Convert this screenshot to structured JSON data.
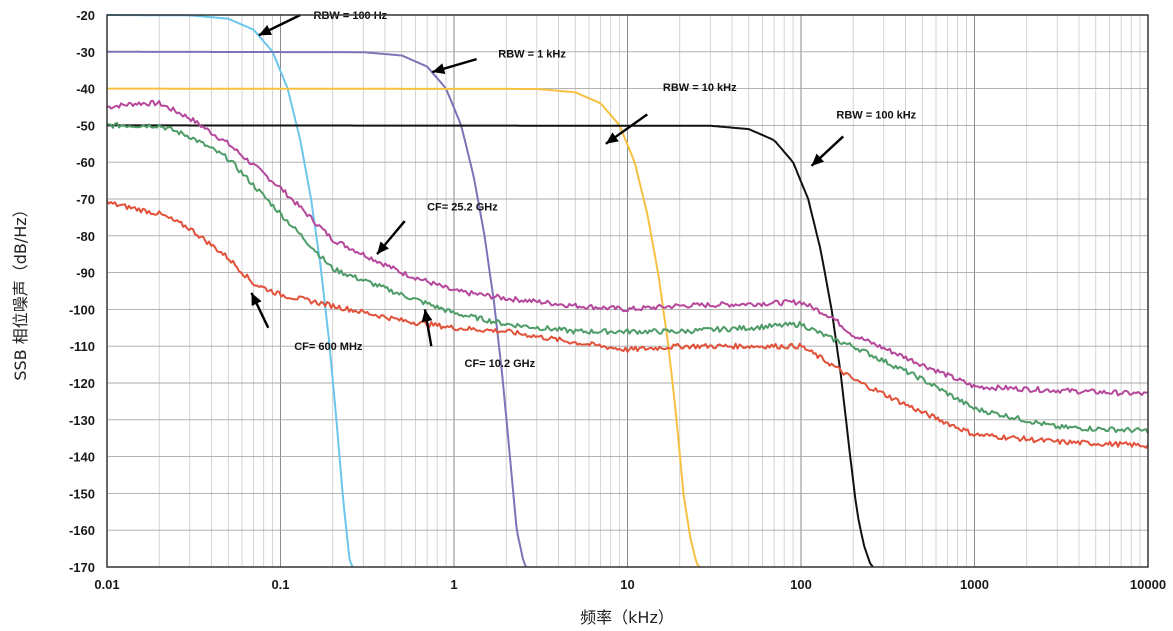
{
  "chart_data": {
    "type": "line",
    "title": "",
    "xlabel": "频率（kHz）",
    "ylabel": "SSB 相位噪声（dB/Hz）",
    "xscale": "log",
    "xlim": [
      0.01,
      10000
    ],
    "ylim": [
      -170,
      -20
    ],
    "grid": true,
    "x_tick_labels": [
      "0.01",
      "0.1",
      "1",
      "10",
      "100",
      "1000",
      "10000"
    ],
    "y_tick_labels": [
      "-20",
      "-30",
      "-40",
      "-50",
      "-60",
      "-70",
      "-80",
      "-90",
      "-100",
      "-110",
      "-120",
      "-130",
      "-140",
      "-150",
      "-160",
      "-170"
    ],
    "series": [
      {
        "name": "RBW = 100 Hz",
        "color": "#6cc6ec",
        "x": [
          0.01,
          0.03,
          0.05,
          0.07,
          0.09,
          0.11,
          0.13,
          0.15,
          0.17,
          0.19,
          0.21,
          0.23,
          0.25,
          0.26
        ],
        "y": [
          -20,
          -20.1,
          -21,
          -24,
          -30,
          -40,
          -54,
          -70,
          -88,
          -108,
          -130,
          -152,
          -168,
          -170
        ]
      },
      {
        "name": "RBW = 1 kHz",
        "color": "#7b74b8",
        "x": [
          0.01,
          0.3,
          0.5,
          0.7,
          0.9,
          1.1,
          1.3,
          1.5,
          1.7,
          1.9,
          2.1,
          2.3,
          2.5,
          2.6
        ],
        "y": [
          -30,
          -30.1,
          -31,
          -34,
          -40,
          -50,
          -64,
          -80,
          -98,
          -118,
          -140,
          -160,
          -168,
          -170
        ]
      },
      {
        "name": "RBW = 10 kHz",
        "color": "#f6c141",
        "x": [
          0.01,
          3,
          5,
          7,
          9,
          11,
          13,
          15,
          17,
          19,
          21,
          23,
          25,
          26
        ],
        "y": [
          -40,
          -40.1,
          -41,
          -44,
          -50,
          -60,
          -74,
          -90,
          -108,
          -128,
          -150,
          -162,
          -169,
          -170
        ]
      },
      {
        "name": "RBW = 100 kHz",
        "color": "#111111",
        "x": [
          0.01,
          30,
          50,
          70,
          90,
          110,
          130,
          150,
          170,
          190,
          210,
          230,
          250,
          260
        ],
        "y": [
          -50,
          -50.1,
          -51,
          -54,
          -60,
          -70,
          -84,
          -100,
          -118,
          -138,
          -155,
          -164,
          -169,
          -170
        ]
      },
      {
        "name": "CF= 25.2 GHz",
        "color": "#b5489c",
        "x": [
          0.01,
          0.015,
          0.02,
          0.03,
          0.05,
          0.1,
          0.2,
          0.5,
          1,
          2,
          5,
          10,
          20,
          50,
          100,
          150,
          200,
          500,
          1000,
          3000,
          10000
        ],
        "y": [
          -45,
          -44,
          -44,
          -48,
          -55,
          -67,
          -81,
          -90,
          -95,
          -97,
          -99,
          -100,
          -99,
          -98.5,
          -98,
          -102,
          -107,
          -115,
          -121,
          -122,
          -123
        ]
      },
      {
        "name": "CF= 10.2 GHz",
        "color": "#4e9c68",
        "x": [
          0.01,
          0.02,
          0.03,
          0.05,
          0.1,
          0.2,
          0.5,
          1,
          2,
          5,
          10,
          20,
          50,
          100,
          150,
          200,
          500,
          1000,
          3000,
          10000
        ],
        "y": [
          -50,
          -50,
          -53,
          -59,
          -74,
          -89,
          -96,
          -101,
          -104,
          -106,
          -106,
          -106,
          -105,
          -104,
          -108,
          -110,
          -119,
          -127,
          -132,
          -133
        ]
      },
      {
        "name": "CF= 600 MHz",
        "color": "#e2513a",
        "x": [
          0.01,
          0.02,
          0.03,
          0.05,
          0.07,
          0.1,
          0.2,
          0.5,
          1,
          2,
          5,
          10,
          20,
          50,
          100,
          150,
          200,
          500,
          1000,
          3000,
          10000
        ],
        "y": [
          -71,
          -74,
          -78,
          -86,
          -93,
          -96,
          -99,
          -103,
          -105,
          -106,
          -109,
          -111,
          -110,
          -110,
          -110,
          -115,
          -119,
          -128,
          -134,
          -136,
          -137
        ]
      }
    ],
    "annotations": [
      {
        "text": "RBW = 100 Hz",
        "ax": 0.13,
        "ay": -20,
        "tx": 0.075,
        "ty": -25.5,
        "lx": 0.155,
        "ly": -20
      },
      {
        "text": "RBW = 1 kHz",
        "ax": 1.35,
        "ay": -32,
        "tx": 0.75,
        "ty": -35.5,
        "lx": 1.8,
        "ly": -30.5
      },
      {
        "text": "RBW = 10 kHz",
        "ax": 13,
        "ay": -47,
        "tx": 7.5,
        "ty": -55,
        "lx": 16,
        "ly": -39.5
      },
      {
        "text": "RBW = 100 kHz",
        "ax": 175,
        "ay": -53,
        "tx": 115,
        "ty": -61,
        "lx": 160,
        "ly": -47
      },
      {
        "text": "CF= 25.2 GHz",
        "ax": 0.52,
        "ay": -76,
        "tx": 0.36,
        "ty": -85,
        "lx": 0.7,
        "ly": -72
      },
      {
        "text": "CF= 10.2 GHz",
        "ax": 0.74,
        "ay": -110,
        "tx": 0.68,
        "ty": -100,
        "lx": 1.15,
        "ly": -114.5
      },
      {
        "text": "CF= 600 MHz",
        "ax": 0.085,
        "ay": -105,
        "tx": 0.068,
        "ty": -95.5,
        "lx": 0.12,
        "ly": -110
      }
    ]
  }
}
